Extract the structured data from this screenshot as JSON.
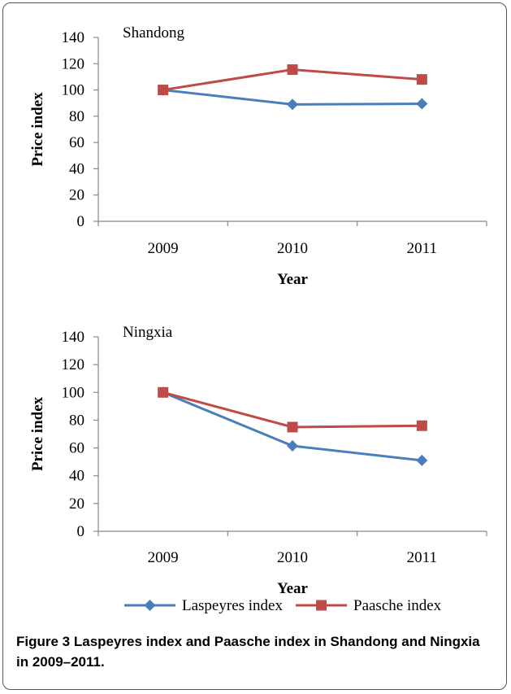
{
  "caption": {
    "label": "Figure 3",
    "text": "Laspeyres index and Paasche index in Shandong and Ningxia in 2009–2011."
  },
  "legend": {
    "placement": "bottom",
    "items": [
      "Laspeyres index",
      "Paasche index"
    ]
  },
  "colors": {
    "laspeyres": "#4a7ebb",
    "paasche": "#be4b48"
  },
  "chart_data": [
    {
      "type": "line",
      "title": "Shandong",
      "xlabel": "Year",
      "ylabel": "Price index",
      "categories": [
        "2009",
        "2010",
        "2011"
      ],
      "ylim": [
        0,
        140
      ],
      "yticks": [
        0,
        20,
        40,
        60,
        80,
        100,
        120,
        140
      ],
      "grid": false,
      "series": [
        {
          "name": "Laspeyres index",
          "marker": "diamond",
          "values": [
            100,
            89,
            89.5
          ]
        },
        {
          "name": "Paasche index",
          "marker": "square",
          "values": [
            100,
            115.5,
            108
          ]
        }
      ]
    },
    {
      "type": "line",
      "title": "Ningxia",
      "xlabel": "Year",
      "ylabel": "Price index",
      "categories": [
        "2009",
        "2010",
        "2011"
      ],
      "ylim": [
        0,
        140
      ],
      "yticks": [
        0,
        20,
        40,
        60,
        80,
        100,
        120,
        140
      ],
      "grid": false,
      "series": [
        {
          "name": "Laspeyres index",
          "marker": "diamond",
          "values": [
            100,
            61.5,
            51
          ]
        },
        {
          "name": "Paasche index",
          "marker": "square",
          "values": [
            100,
            75,
            76
          ]
        }
      ]
    }
  ]
}
